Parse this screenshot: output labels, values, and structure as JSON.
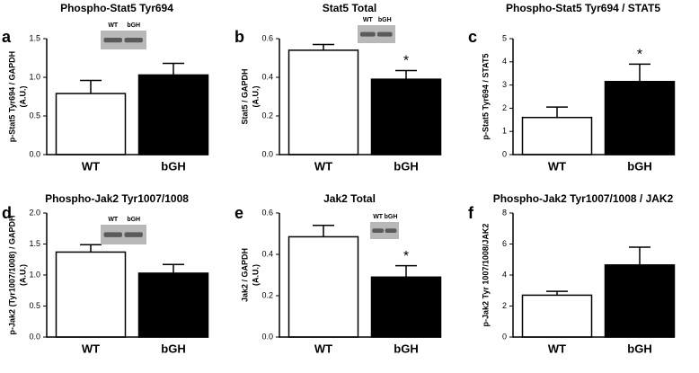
{
  "chart_data": [
    {
      "type": "bar",
      "panel": "a",
      "title": "Phospho-Stat5 Tyr694",
      "ylabel": "p-Stat5 Tyr694 / GAPDH",
      "yunit": "(A.U.)",
      "categories": [
        "WT",
        "bGH"
      ],
      "values": [
        0.79,
        1.03
      ],
      "errors": [
        0.17,
        0.15
      ],
      "colors": [
        "#ffffff",
        "#000000"
      ],
      "significance": [
        null,
        null
      ],
      "ylim": [
        0,
        1.5
      ],
      "yticks": [
        {
          "value": 0,
          "label": "0.0"
        },
        {
          "value": 0.5,
          "label": "0.5"
        },
        {
          "value": 1,
          "label": "1.0"
        },
        {
          "value": 1.5,
          "label": "1.5"
        }
      ],
      "blot_labels": [
        "WT",
        "bGH"
      ]
    },
    {
      "type": "bar",
      "panel": "b",
      "title": "Stat5 Total",
      "ylabel": "Stat5 / GAPDH",
      "yunit": "(A.U.)",
      "categories": [
        "WT",
        "bGH"
      ],
      "values": [
        0.54,
        0.39
      ],
      "errors": [
        0.03,
        0.045
      ],
      "colors": [
        "#ffffff",
        "#000000"
      ],
      "significance": [
        null,
        "*"
      ],
      "ylim": [
        0,
        0.6
      ],
      "yticks": [
        {
          "value": 0,
          "label": "0.0"
        },
        0.2,
        0.4,
        0.6
      ],
      "blot_labels": [
        "WT",
        "bGH"
      ]
    },
    {
      "type": "bar",
      "panel": "c",
      "title": "Phospho-Stat5 Tyr694 / STAT5",
      "ylabel": "p-Stat5 Tyr694 / STAT5",
      "categories": [
        "WT",
        "bGH"
      ],
      "values": [
        1.6,
        3.15
      ],
      "errors": [
        0.45,
        0.75
      ],
      "colors": [
        "#ffffff",
        "#000000"
      ],
      "significance": [
        null,
        "*"
      ],
      "ylim": [
        0,
        5
      ],
      "yticks": [
        0,
        1,
        2,
        3,
        4,
        5
      ]
    },
    {
      "type": "bar",
      "panel": "d",
      "title": "Phospho-Jak2 Tyr1007/1008",
      "ylabel": "p-Jak2 (Tyr1007/1008) / GAPDH",
      "yunit": "(A.U.)",
      "categories": [
        "WT",
        "bGH"
      ],
      "values": [
        1.37,
        1.03
      ],
      "errors": [
        0.12,
        0.14
      ],
      "colors": [
        "#ffffff",
        "#000000"
      ],
      "significance": [
        null,
        null
      ],
      "ylim": [
        0,
        2
      ],
      "yticks": [
        {
          "value": 0,
          "label": "0.0"
        },
        0.5,
        {
          "value": 1,
          "label": "1.0"
        },
        1.5,
        {
          "value": 2,
          "label": "2.0"
        }
      ],
      "blot_labels": [
        "WT",
        "bGH"
      ]
    },
    {
      "type": "bar",
      "panel": "e",
      "title": "Jak2 Total",
      "ylabel": "Jak2 / GAPDH",
      "yunit": "(A.U.)",
      "categories": [
        "WT",
        "bGH"
      ],
      "values": [
        0.485,
        0.29
      ],
      "errors": [
        0.055,
        0.055
      ],
      "colors": [
        "#ffffff",
        "#000000"
      ],
      "significance": [
        null,
        "*"
      ],
      "ylim": [
        0,
        0.6
      ],
      "yticks": [
        {
          "value": 0,
          "label": "0.0"
        },
        0.2,
        0.4,
        0.6
      ],
      "blot_labels": [
        "WT",
        "bGH"
      ]
    },
    {
      "type": "bar",
      "panel": "f",
      "title": "Phospho-Jak2 Tyr1007/1008 / JAK2",
      "ylabel": "p-Jak2 Tyr 1007/1008/JAK2",
      "categories": [
        "WT",
        "bGH"
      ],
      "values": [
        2.7,
        4.65
      ],
      "errors": [
        0.25,
        1.15
      ],
      "colors": [
        "#ffffff",
        "#000000"
      ],
      "significance": [
        null,
        null
      ],
      "ylim": [
        0,
        8
      ],
      "yticks": [
        0,
        2,
        4,
        6,
        8
      ]
    }
  ]
}
